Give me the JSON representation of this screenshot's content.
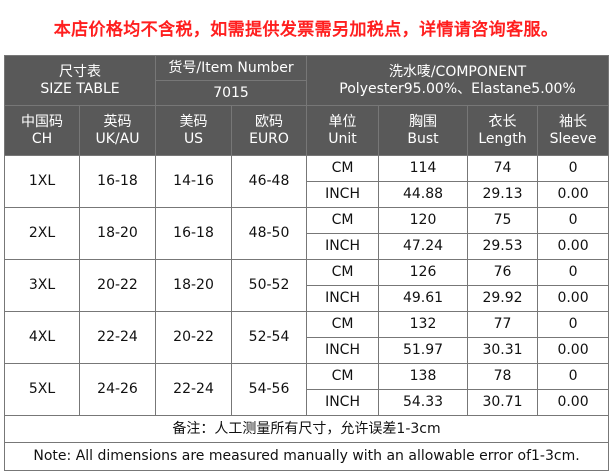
{
  "notice": "本店价格均不含税，如需提供发票需另加税点，详情请咨询客服。",
  "header": {
    "size_table_cn": "尺寸表",
    "size_table_en": "SIZE TABLE",
    "item_number_label": "货号/Item Number",
    "item_number_value": "7015",
    "component_label": "洗水唛/COMPONENT",
    "component_value": "Polyester95.00%、Elastane5.00%"
  },
  "columns": [
    {
      "cn": "中国码",
      "en": "CH"
    },
    {
      "cn": "英码",
      "en": "UK/AU"
    },
    {
      "cn": "美码",
      "en": "US"
    },
    {
      "cn": "欧码",
      "en": "EURO"
    },
    {
      "cn": "单位",
      "en": "Unit"
    },
    {
      "cn": "胸围",
      "en": "Bust"
    },
    {
      "cn": "衣长",
      "en": "Length"
    },
    {
      "cn": "袖长",
      "en": "Sleeve"
    }
  ],
  "rows": [
    {
      "ch": "1XL",
      "uk": "16-18",
      "us": "14-16",
      "euro": "46-48",
      "cm": {
        "unit": "CM",
        "bust": "114",
        "length": "74",
        "sleeve": "0"
      },
      "inch": {
        "unit": "INCH",
        "bust": "44.88",
        "length": "29.13",
        "sleeve": "0.00"
      }
    },
    {
      "ch": "2XL",
      "uk": "18-20",
      "us": "16-18",
      "euro": "48-50",
      "cm": {
        "unit": "CM",
        "bust": "120",
        "length": "75",
        "sleeve": "0"
      },
      "inch": {
        "unit": "INCH",
        "bust": "47.24",
        "length": "29.53",
        "sleeve": "0.00"
      }
    },
    {
      "ch": "3XL",
      "uk": "20-22",
      "us": "18-20",
      "euro": "50-52",
      "cm": {
        "unit": "CM",
        "bust": "126",
        "length": "76",
        "sleeve": "0"
      },
      "inch": {
        "unit": "INCH",
        "bust": "49.61",
        "length": "29.92",
        "sleeve": "0.00"
      }
    },
    {
      "ch": "4XL",
      "uk": "22-24",
      "us": "20-22",
      "euro": "52-54",
      "cm": {
        "unit": "CM",
        "bust": "132",
        "length": "77",
        "sleeve": "0"
      },
      "inch": {
        "unit": "INCH",
        "bust": "51.97",
        "length": "30.31",
        "sleeve": "0.00"
      }
    },
    {
      "ch": "5XL",
      "uk": "24-26",
      "us": "22-24",
      "euro": "54-56",
      "cm": {
        "unit": "CM",
        "bust": "138",
        "length": "78",
        "sleeve": "0"
      },
      "inch": {
        "unit": "INCH",
        "bust": "54.33",
        "length": "30.71",
        "sleeve": "0.00"
      }
    }
  ],
  "footer": {
    "note_cn": "备注：人工测量所有尺寸，允许误差1-3cm",
    "note_en": "Note: All dimensions are measured manually with an allowable error of1-3cm."
  }
}
